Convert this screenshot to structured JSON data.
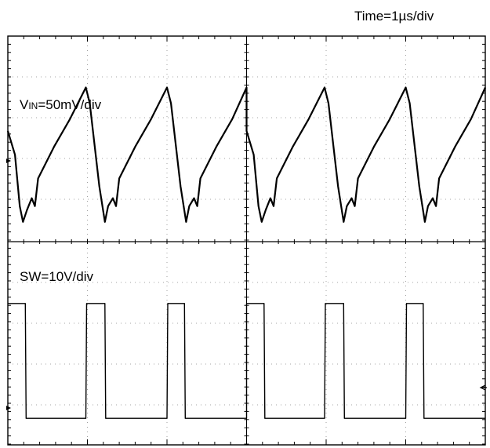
{
  "chart_data": [
    {
      "type": "line",
      "title": "",
      "timebase_label": "Time=1µs/div",
      "channel_label": {
        "main": "V",
        "sub": "IN",
        "rest": "=50mV/div"
      },
      "x_unit": "µs",
      "y_unit": "div",
      "xlim": [
        0,
        6
      ],
      "ylim": [
        -1.0,
        1.6
      ],
      "grid": true,
      "series": [
        {
          "x": [
            0.0,
            0.09,
            0.15,
            0.19,
            0.24,
            0.3,
            0.34,
            0.38,
            0.58,
            0.78,
            0.98,
            1.03,
            1.15,
            1.22,
            1.26,
            1.32,
            1.36,
            1.4,
            1.6,
            1.8,
            2.0,
            2.05,
            2.17,
            2.24,
            2.28,
            2.34,
            2.38,
            2.42,
            2.62,
            2.82,
            3.0
          ],
          "y": [
            0.4,
            0.1,
            -0.55,
            -0.75,
            -0.6,
            -0.45,
            -0.55,
            -0.2,
            0.2,
            0.55,
            0.95,
            0.75,
            -0.3,
            -0.75,
            -0.55,
            -0.45,
            -0.55,
            -0.2,
            0.2,
            0.55,
            0.95,
            0.75,
            -0.3,
            -0.75,
            -0.55,
            -0.45,
            -0.55,
            -0.2,
            0.2,
            0.55,
            0.95
          ]
        }
      ]
    },
    {
      "type": "line",
      "title": "",
      "channel_label": "SW=10V/div",
      "x_unit": "µs",
      "y_unit": "div",
      "xlim": [
        0,
        6
      ],
      "ylim": [
        -0.6,
        4.0
      ],
      "grid": true,
      "series": [
        {
          "x": [
            0.0,
            0.22,
            0.23,
            0.98,
            0.99,
            1.22,
            1.23,
            2.0,
            2.01,
            2.22,
            2.23,
            3.0
          ],
          "y": [
            2.6,
            2.6,
            0.0,
            0.0,
            2.6,
            2.6,
            0.0,
            0.0,
            2.6,
            2.6,
            0.0,
            0.0
          ]
        }
      ]
    }
  ]
}
